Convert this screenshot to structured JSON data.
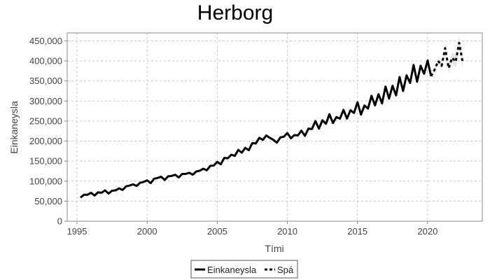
{
  "chart_data": {
    "type": "line",
    "title": "Herborg",
    "xlabel": "Tími",
    "ylabel": "Einkaneysla",
    "xlim": [
      1994.3,
      2023.9
    ],
    "ylim": [
      0,
      470000
    ],
    "x_ticks": [
      1995,
      2000,
      2005,
      2010,
      2015,
      2020
    ],
    "y_ticks": [
      0,
      50000,
      100000,
      150000,
      200000,
      250000,
      300000,
      350000,
      400000,
      450000
    ],
    "y_tick_labels": [
      "0",
      "50,000",
      "100,000",
      "150,000",
      "200,000",
      "250,000",
      "300,000",
      "350,000",
      "400,000",
      "450,000"
    ],
    "grid": true,
    "legend_position": "bottom",
    "series": [
      {
        "name": "Einkaneysla",
        "style": "solid",
        "color": "#000000",
        "x": [
          1995.25,
          1995.5,
          1995.75,
          1996,
          1996.25,
          1996.5,
          1996.75,
          1997,
          1997.25,
          1997.5,
          1997.75,
          1998,
          1998.25,
          1998.5,
          1998.75,
          1999,
          1999.25,
          1999.5,
          1999.75,
          2000,
          2000.25,
          2000.5,
          2000.75,
          2001,
          2001.25,
          2001.5,
          2001.75,
          2002,
          2002.25,
          2002.5,
          2002.75,
          2003,
          2003.25,
          2003.5,
          2003.75,
          2004,
          2004.25,
          2004.5,
          2004.75,
          2005,
          2005.25,
          2005.5,
          2005.75,
          2006,
          2006.25,
          2006.5,
          2006.75,
          2007,
          2007.25,
          2007.5,
          2007.75,
          2008,
          2008.25,
          2008.5,
          2008.75,
          2009,
          2009.25,
          2009.5,
          2009.75,
          2010,
          2010.25,
          2010.5,
          2010.75,
          2011,
          2011.25,
          2011.5,
          2011.75,
          2012,
          2012.25,
          2012.5,
          2012.75,
          2013,
          2013.25,
          2013.5,
          2013.75,
          2014,
          2014.25,
          2014.5,
          2014.75,
          2015,
          2015.25,
          2015.5,
          2015.75,
          2016,
          2016.25,
          2016.5,
          2016.75,
          2017,
          2017.25,
          2017.5,
          2017.75,
          2018,
          2018.25,
          2018.5,
          2018.75,
          2019,
          2019.25,
          2019.5,
          2019.75,
          2020,
          2020.25
        ],
        "y": [
          59000,
          66000,
          66000,
          71000,
          64000,
          72000,
          71000,
          77000,
          69000,
          76000,
          77000,
          82000,
          78000,
          87000,
          89000,
          92000,
          88000,
          96000,
          98000,
          102000,
          95000,
          106000,
          108000,
          111000,
          103000,
          112000,
          113000,
          116000,
          109000,
          118000,
          118000,
          121000,
          116000,
          124000,
          126000,
          131000,
          127000,
          138000,
          139000,
          148000,
          142000,
          158000,
          157000,
          166000,
          163000,
          178000,
          171000,
          183000,
          177000,
          195000,
          194000,
          208000,
          203000,
          214000,
          208000,
          203000,
          196000,
          209000,
          211000,
          220000,
          207000,
          215000,
          214000,
          226000,
          213000,
          231000,
          230000,
          250000,
          231000,
          252000,
          243000,
          267000,
          245000,
          260000,
          256000,
          278000,
          256000,
          277000,
          270000,
          297000,
          266000,
          289000,
          281000,
          313000,
          289000,
          317000,
          294000,
          336000,
          306000,
          338000,
          314000,
          360000,
          325000,
          364000,
          345000,
          390000,
          348000,
          388000,
          368000,
          401000,
          362000
        ],
        "values": [
          59000,
          66000,
          66000,
          71000,
          64000,
          72000,
          71000,
          77000,
          69000,
          76000,
          77000,
          82000,
          78000,
          87000,
          89000,
          92000,
          88000,
          96000,
          98000,
          102000,
          95000,
          106000,
          108000,
          111000,
          103000,
          112000,
          113000,
          116000,
          109000,
          118000,
          118000,
          121000,
          116000,
          124000,
          126000,
          131000,
          127000,
          138000,
          139000,
          148000,
          142000,
          158000,
          157000,
          166000,
          163000,
          178000,
          171000,
          183000,
          177000,
          195000,
          194000,
          208000,
          203000,
          214000,
          208000,
          203000,
          196000,
          209000,
          211000,
          220000,
          207000,
          215000,
          214000,
          226000,
          213000,
          231000,
          230000,
          250000,
          231000,
          252000,
          243000,
          267000,
          245000,
          260000,
          256000,
          278000,
          256000,
          277000,
          270000,
          297000,
          266000,
          289000,
          281000,
          313000,
          289000,
          317000,
          294000,
          336000,
          306000,
          338000,
          314000,
          360000,
          325000,
          364000,
          345000,
          390000,
          348000,
          388000,
          368000,
          401000,
          362000
        ]
      },
      {
        "name": "Spá",
        "style": "dashed",
        "color": "#000000",
        "x": [
          2020.25,
          2020.5,
          2020.75,
          2021,
          2021.25,
          2021.5,
          2021.75,
          2022,
          2022.25,
          2022.5
        ],
        "y": [
          362000,
          378000,
          400000,
          388000,
          432000,
          382000,
          408000,
          398000,
          445000,
          397000
        ],
        "values": [
          362000,
          378000,
          400000,
          388000,
          432000,
          382000,
          408000,
          398000,
          445000,
          397000
        ]
      }
    ],
    "forecast_band_color": "#e6e6e6",
    "forecast_band": {
      "x": [
        2020.25,
        2020.5,
        2020.75,
        2021,
        2021.25,
        2021.5,
        2021.75,
        2022,
        2022.25,
        2022.5
      ],
      "lower": [
        362000,
        372000,
        392000,
        378000,
        420000,
        370000,
        394000,
        382000,
        428000,
        379000
      ],
      "upper": [
        362000,
        384000,
        408000,
        398000,
        444000,
        394000,
        422000,
        414000,
        462000,
        415000
      ]
    }
  }
}
